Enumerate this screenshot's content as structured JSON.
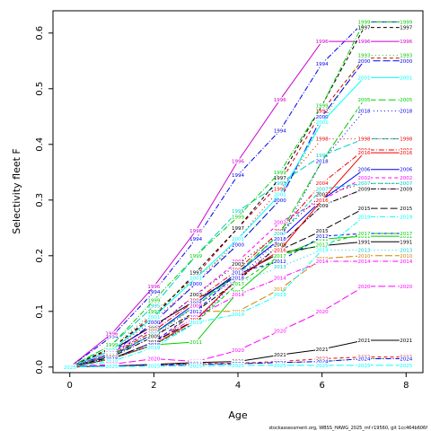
{
  "chart_data": {
    "type": "line",
    "xlabel": "Age",
    "ylabel": "Selectivity fleet F",
    "xlim": [
      -0.4,
      8.4
    ],
    "ylim": [
      -0.01,
      0.64
    ],
    "x_ticks": [
      0,
      2,
      4,
      6,
      8
    ],
    "y_ticks": [
      0.0,
      0.1,
      0.2,
      0.3,
      0.4,
      0.5,
      0.6
    ],
    "y_tick_labels": [
      "0.0",
      "0.1",
      "0.2",
      "0.3",
      "0.4",
      "0.5",
      "0.6"
    ],
    "x": [
      0,
      1,
      2,
      3,
      4,
      5,
      6,
      7,
      8
    ],
    "legend": "none",
    "grid": false,
    "footer": "stockassessment.org, WBSS_HAWG_2025_mf r19560, git 1cc464b606f",
    "series": [
      {
        "name": "1991",
        "values": [
          0,
          0.03,
          0.075,
          0.12,
          0.165,
          0.205,
          0.218,
          0.225,
          0.225
        ],
        "color": "#000000",
        "dash": "none"
      },
      {
        "name": "1992",
        "values": [
          0,
          0.033,
          0.095,
          0.165,
          0.25,
          0.33,
          0.46,
          0.555,
          0.555
        ],
        "color": "#cd0000",
        "dash": "4,3"
      },
      {
        "name": "1993",
        "values": [
          0,
          0.035,
          0.1,
          0.16,
          0.22,
          0.3,
          0.44,
          0.56,
          0.56
        ],
        "color": "#00cd00",
        "dash": "1,3"
      },
      {
        "name": "1994",
        "values": [
          0,
          0.055,
          0.135,
          0.23,
          0.345,
          0.425,
          0.545,
          0.62,
          0.62
        ],
        "color": "#0000ee",
        "dash": "6,2,1,2"
      },
      {
        "name": "1995",
        "values": [
          0,
          0.04,
          0.11,
          0.2,
          0.28,
          0.33,
          0.38,
          0.41,
          0.41
        ],
        "color": "#00cdcd",
        "dash": "8,3"
      },
      {
        "name": "1996",
        "values": [
          0,
          0.06,
          0.145,
          0.245,
          0.37,
          0.48,
          0.585,
          0.585,
          0.585
        ],
        "color": "#cd00cd",
        "dash": "none"
      },
      {
        "name": "1997",
        "values": [
          0,
          0.035,
          0.09,
          0.17,
          0.25,
          0.34,
          0.47,
          0.61,
          0.61
        ],
        "color": "#000000",
        "dash": "4,3"
      },
      {
        "name": "1998",
        "values": [
          0,
          0.03,
          0.085,
          0.15,
          0.23,
          0.32,
          0.41,
          0.41,
          0.41
        ],
        "color": "#ee0000",
        "dash": "1,3"
      },
      {
        "name": "1999",
        "values": [
          0,
          0.04,
          0.12,
          0.2,
          0.27,
          0.35,
          0.47,
          0.62,
          0.62
        ],
        "color": "#00cd00",
        "dash": "6,2,1,2"
      },
      {
        "name": "2000",
        "values": [
          0,
          0.025,
          0.08,
          0.15,
          0.22,
          0.3,
          0.45,
          0.55,
          0.55
        ],
        "color": "#0000ee",
        "dash": "8,3"
      },
      {
        "name": "2001",
        "values": [
          0,
          0.03,
          0.09,
          0.16,
          0.23,
          0.31,
          0.44,
          0.52,
          0.52
        ],
        "color": "#00ffff",
        "dash": "none"
      },
      {
        "name": "2002",
        "values": [
          0,
          0.025,
          0.07,
          0.13,
          0.19,
          0.26,
          0.3,
          0.34,
          0.34
        ],
        "color": "#ff00ff",
        "dash": "4,3"
      },
      {
        "name": "2003",
        "values": [
          0,
          0.022,
          0.07,
          0.13,
          0.185,
          0.24,
          0.31,
          0.33,
          0.33
        ],
        "color": "#000000",
        "dash": "1,3"
      },
      {
        "name": "2004",
        "values": [
          0,
          0.022,
          0.065,
          0.12,
          0.175,
          0.245,
          0.33,
          0.39,
          0.39
        ],
        "color": "#ee0000",
        "dash": "6,2,1,2"
      },
      {
        "name": "2005",
        "values": [
          0,
          0.022,
          0.06,
          0.11,
          0.17,
          0.24,
          0.37,
          0.48,
          0.48
        ],
        "color": "#00cd00",
        "dash": "8,3"
      },
      {
        "name": "2006",
        "values": [
          0,
          0.02,
          0.06,
          0.115,
          0.17,
          0.23,
          0.3,
          0.355,
          0.355
        ],
        "color": "#0000ee",
        "dash": "none"
      },
      {
        "name": "2007",
        "values": [
          0,
          0.02,
          0.06,
          0.11,
          0.165,
          0.24,
          0.32,
          0.33,
          0.33
        ],
        "color": "#00cdcd",
        "dash": "4,3"
      },
      {
        "name": "2008",
        "values": [
          0,
          0.02,
          0.055,
          0.11,
          0.16,
          0.22,
          0.29,
          0.32,
          0.32
        ],
        "color": "#cd00cd",
        "dash": "1,3"
      },
      {
        "name": "2009",
        "values": [
          0,
          0.018,
          0.055,
          0.1,
          0.155,
          0.22,
          0.29,
          0.32,
          0.32
        ],
        "color": "#000000",
        "dash": "6,2,1,2"
      },
      {
        "name": "2010",
        "values": [
          0,
          0.015,
          0.04,
          0.1,
          0.1,
          0.14,
          0.195,
          0.2,
          0.2
        ],
        "color": "#cd8500",
        "dash": "8,3"
      },
      {
        "name": "2011",
        "values": [
          0,
          0.015,
          0.04,
          0.045,
          0.135,
          0.2,
          0.23,
          0.235,
          0.235
        ],
        "color": "#00cd00",
        "dash": "none"
      },
      {
        "name": "2012",
        "values": [
          0,
          0.015,
          0.045,
          0.1,
          0.17,
          0.19,
          0.235,
          0.24,
          0.24
        ],
        "color": "#0000ee",
        "dash": "4,3"
      },
      {
        "name": "2013",
        "values": [
          0,
          0.015,
          0.04,
          0.085,
          0.15,
          0.18,
          0.21,
          0.21,
          0.21
        ],
        "color": "#00cdcd",
        "dash": "1,3"
      },
      {
        "name": "2014",
        "values": [
          0,
          0.015,
          0.045,
          0.09,
          0.13,
          0.16,
          0.19,
          0.19,
          0.19
        ],
        "color": "#ff00ff",
        "dash": "6,2,1,2"
      },
      {
        "name": "2015",
        "values": [
          0,
          0.015,
          0.045,
          0.085,
          0.16,
          0.21,
          0.245,
          0.285,
          0.285
        ],
        "color": "#000000",
        "dash": "8,3"
      },
      {
        "name": "2016",
        "values": [
          0,
          0.015,
          0.04,
          0.085,
          0.16,
          0.21,
          0.3,
          0.385,
          0.385
        ],
        "color": "#ee0000",
        "dash": "none"
      },
      {
        "name": "2017",
        "values": [
          0,
          0.015,
          0.04,
          0.08,
          0.15,
          0.2,
          0.22,
          0.24,
          0.24
        ],
        "color": "#00cd00",
        "dash": "4,3"
      },
      {
        "name": "2018",
        "values": [
          0,
          0.015,
          0.04,
          0.08,
          0.16,
          0.23,
          0.37,
          0.46,
          0.46
        ],
        "color": "#0000ee",
        "dash": "1,3"
      },
      {
        "name": "2019",
        "values": [
          0,
          0.01,
          0.035,
          0.08,
          0.095,
          0.13,
          0.21,
          0.27,
          0.27
        ],
        "color": "#00ffff",
        "dash": "6,2,1,2"
      },
      {
        "name": "2020",
        "values": [
          0,
          0.005,
          0.015,
          0.01,
          0.03,
          0.065,
          0.1,
          0.145,
          0.145
        ],
        "color": "#ff00ff",
        "dash": "8,3"
      },
      {
        "name": "2021",
        "values": [
          0,
          0.002,
          0.005,
          0.008,
          0.01,
          0.022,
          0.032,
          0.048,
          0.048
        ],
        "color": "#000000",
        "dash": "none"
      },
      {
        "name": "2022",
        "values": [
          0,
          0.002,
          0.004,
          0.006,
          0.007,
          0.01,
          0.015,
          0.018,
          0.018
        ],
        "color": "#ee0000",
        "dash": "4,3"
      },
      {
        "name": "2023",
        "values": [
          0,
          0.002,
          0.003,
          0.004,
          0.006,
          0.008,
          0.01,
          0.015,
          0.015
        ],
        "color": "#00cd00",
        "dash": "1,3"
      },
      {
        "name": "2024",
        "values": [
          0,
          0.002,
          0.003,
          0.005,
          0.006,
          0.008,
          0.01,
          0.015,
          0.015
        ],
        "color": "#0000ee",
        "dash": "6,2,1,2"
      },
      {
        "name": "2025",
        "values": [
          0,
          0.001,
          0.002,
          0.002,
          0.003,
          0.003,
          0.003,
          0.003,
          0.003
        ],
        "color": "#00ffff",
        "dash": "8,3"
      }
    ]
  }
}
